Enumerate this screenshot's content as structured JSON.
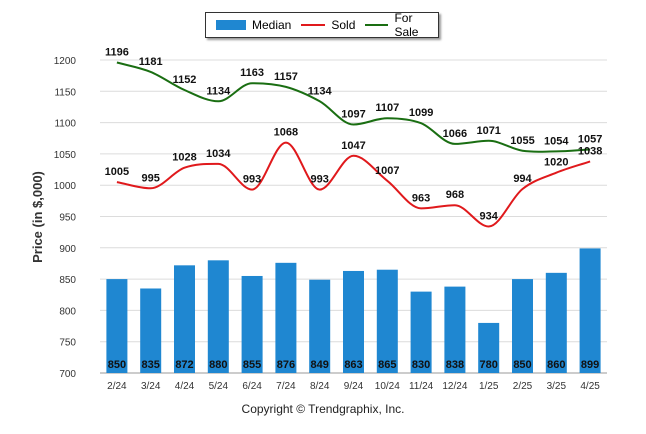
{
  "chart_data": {
    "type": "bar",
    "categories": [
      "2/24",
      "3/24",
      "4/24",
      "5/24",
      "6/24",
      "7/24",
      "8/24",
      "9/24",
      "10/24",
      "11/24",
      "12/24",
      "1/25",
      "2/25",
      "3/25",
      "4/25"
    ],
    "series": [
      {
        "name": "Median",
        "type": "bar",
        "color": "#1f87d1",
        "values": [
          850,
          835,
          872,
          880,
          855,
          876,
          849,
          863,
          865,
          830,
          838,
          780,
          850,
          860,
          899
        ]
      },
      {
        "name": "Sold",
        "type": "line",
        "color": "#e0191c",
        "values": [
          1005,
          995,
          1028,
          1034,
          993,
          1068,
          993,
          1047,
          1007,
          963,
          968,
          934,
          994,
          1020,
          1038
        ]
      },
      {
        "name": "For Sale",
        "type": "line",
        "color": "#1a6e12",
        "values": [
          1196,
          1181,
          1152,
          1134,
          1163,
          1157,
          1134,
          1097,
          1107,
          1099,
          1066,
          1071,
          1055,
          1054,
          1057
        ]
      }
    ],
    "ylabel": "Price (in $,000)",
    "ylim": [
      700,
      1200
    ],
    "yticks": [
      700,
      750,
      800,
      850,
      900,
      950,
      1000,
      1050,
      1100,
      1150,
      1200
    ],
    "grid": true,
    "legend_position": "top-center"
  },
  "footer": {
    "copyright": "Copyright © Trendgraphix, Inc."
  }
}
